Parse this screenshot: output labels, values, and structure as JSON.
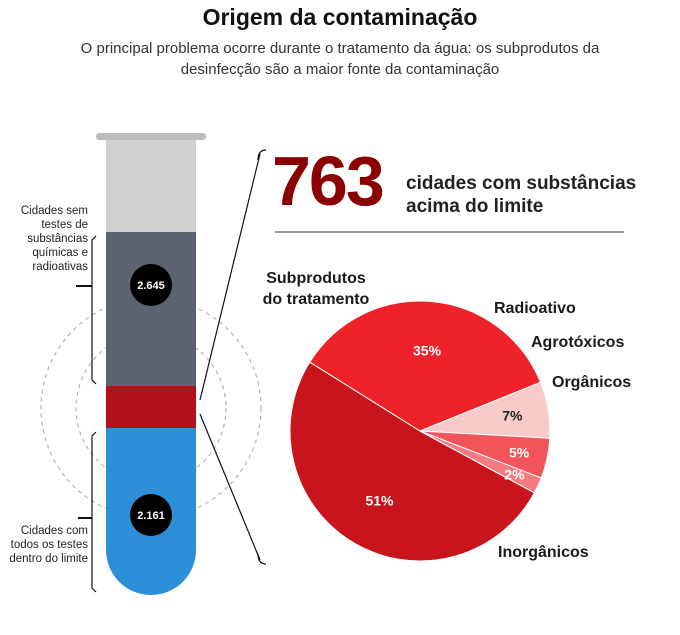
{
  "header": {
    "title": "Origem da contaminação",
    "subtitle": "O principal problema ocorre durante o tratamento da água: os subprodutos da desinfecção são a maior fonte da contaminação"
  },
  "tube": {
    "untested_label": "Cidades sem testes de substâncias químicas e radioativas",
    "untested_count": "2.645",
    "within_label": "Cidades com todos os testes dentro do limite",
    "within_count": "2.161",
    "colors": {
      "untested": "#5d6470",
      "above": "#b0111a",
      "within": "#2d8fd8",
      "empty": "#cfd0d2"
    }
  },
  "headline": {
    "number": "763",
    "text": "cidades com substâncias acima do limite"
  },
  "chart_data": {
    "type": "pie",
    "slices": [
      {
        "name": "Subprodutos do tratamento",
        "value": 51,
        "label": "51%",
        "color": "#c8141c"
      },
      {
        "name": "Inorgânicos",
        "value": 35,
        "label": "35%",
        "color": "#ee2228"
      },
      {
        "name": "Orgânicos",
        "value": 7,
        "label": "7%",
        "color": "#f8caca"
      },
      {
        "name": "Agrotóxicos",
        "value": 5,
        "label": "5%",
        "color": "#f1555a"
      },
      {
        "name": "Radioativo",
        "value": 2,
        "label": "2%",
        "color": "#f57b7f"
      }
    ]
  }
}
